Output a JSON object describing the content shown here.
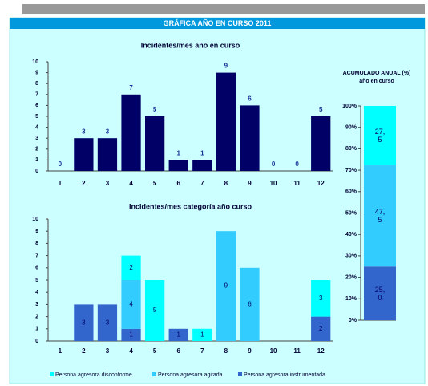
{
  "header": {
    "title": "GRÁFICA AÑO EN CURSO 2011"
  },
  "chart_data": [
    {
      "type": "bar",
      "title": "Incidentes/mes año en curso",
      "categories": [
        "1",
        "2",
        "3",
        "4",
        "5",
        "6",
        "7",
        "8",
        "9",
        "10",
        "11",
        "12"
      ],
      "values": [
        0,
        3,
        3,
        7,
        5,
        1,
        1,
        9,
        6,
        0,
        0,
        5
      ],
      "color": "#000066",
      "ylim": [
        0,
        10
      ],
      "yticks": [
        0,
        1,
        2,
        3,
        4,
        5,
        6,
        7,
        8,
        9,
        10
      ]
    },
    {
      "type": "stacked_bar",
      "title": "Incidentes/mes categoría año curso",
      "categories": [
        "1",
        "2",
        "3",
        "4",
        "5",
        "6",
        "7",
        "8",
        "9",
        "10",
        "11",
        "12"
      ],
      "series": [
        {
          "name": "Persona agresora instrumentada",
          "color": "#3366cc",
          "values": [
            0,
            3,
            3,
            1,
            0,
            1,
            0,
            0,
            0,
            0,
            0,
            2
          ]
        },
        {
          "name": "Persona agresora agitada",
          "color": "#33ccff",
          "values": [
            0,
            0,
            0,
            4,
            0,
            0,
            0,
            9,
            6,
            0,
            0,
            0
          ]
        },
        {
          "name": "Persona agresora disconforme",
          "color": "#00ffff",
          "values": [
            0,
            0,
            0,
            2,
            5,
            0,
            1,
            0,
            0,
            0,
            0,
            3
          ]
        }
      ],
      "ylim": [
        0,
        10
      ],
      "yticks": [
        0,
        1,
        2,
        3,
        4,
        5,
        6,
        7,
        8,
        9,
        10
      ]
    },
    {
      "type": "stacked_100",
      "title": "ACUMULADO ANUAL (%) año en curso",
      "series": [
        {
          "color": "#3366cc",
          "values": [
            25.0
          ],
          "value_labels": [
            "25,0"
          ]
        },
        {
          "color": "#33ccff",
          "values": [
            47.5
          ],
          "value_labels": [
            "47,5"
          ]
        },
        {
          "color": "#00ffff",
          "values": [
            27.5
          ],
          "value_labels": [
            "27,5"
          ]
        }
      ],
      "ylim": [
        0,
        100
      ],
      "yticks": [
        {
          "value": 0,
          "label": "0%"
        },
        {
          "value": 10,
          "label": "10%"
        },
        {
          "value": 20,
          "label": "20%"
        },
        {
          "value": 30,
          "label": "30%"
        },
        {
          "value": 40,
          "label": "40%"
        },
        {
          "value": 50,
          "label": "50%"
        },
        {
          "value": 60,
          "label": "60%"
        },
        {
          "value": 70,
          "label": "70%"
        },
        {
          "value": 80,
          "label": "80%"
        },
        {
          "value": 90,
          "label": "90%"
        },
        {
          "value": 100,
          "label": "100%"
        }
      ]
    }
  ]
}
